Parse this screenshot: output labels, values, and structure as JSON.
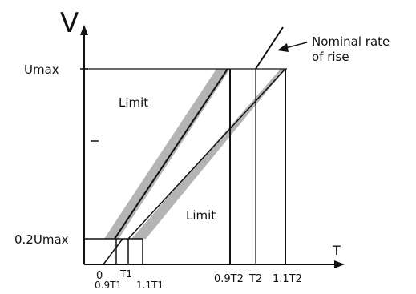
{
  "axes": {
    "y_label": "V",
    "x_label": "T"
  },
  "y_ticks": {
    "umax": "Umax",
    "u02": "0.2Umax"
  },
  "x_ticks": {
    "zero": "0",
    "t1": "T1",
    "t1_09": "0.9T1",
    "t1_11": "1.1T1",
    "t2_09": "0.9T2",
    "t2": "T2",
    "t2_11": "1.1T2"
  },
  "regions": {
    "limit_upper": "Limit",
    "limit_lower": "Limit"
  },
  "annotation": {
    "line1": "Nominal rate",
    "line2": "of rise"
  },
  "colors": {
    "line": "#111111",
    "band": "#b4b4b4",
    "background": "#ffffff"
  }
}
